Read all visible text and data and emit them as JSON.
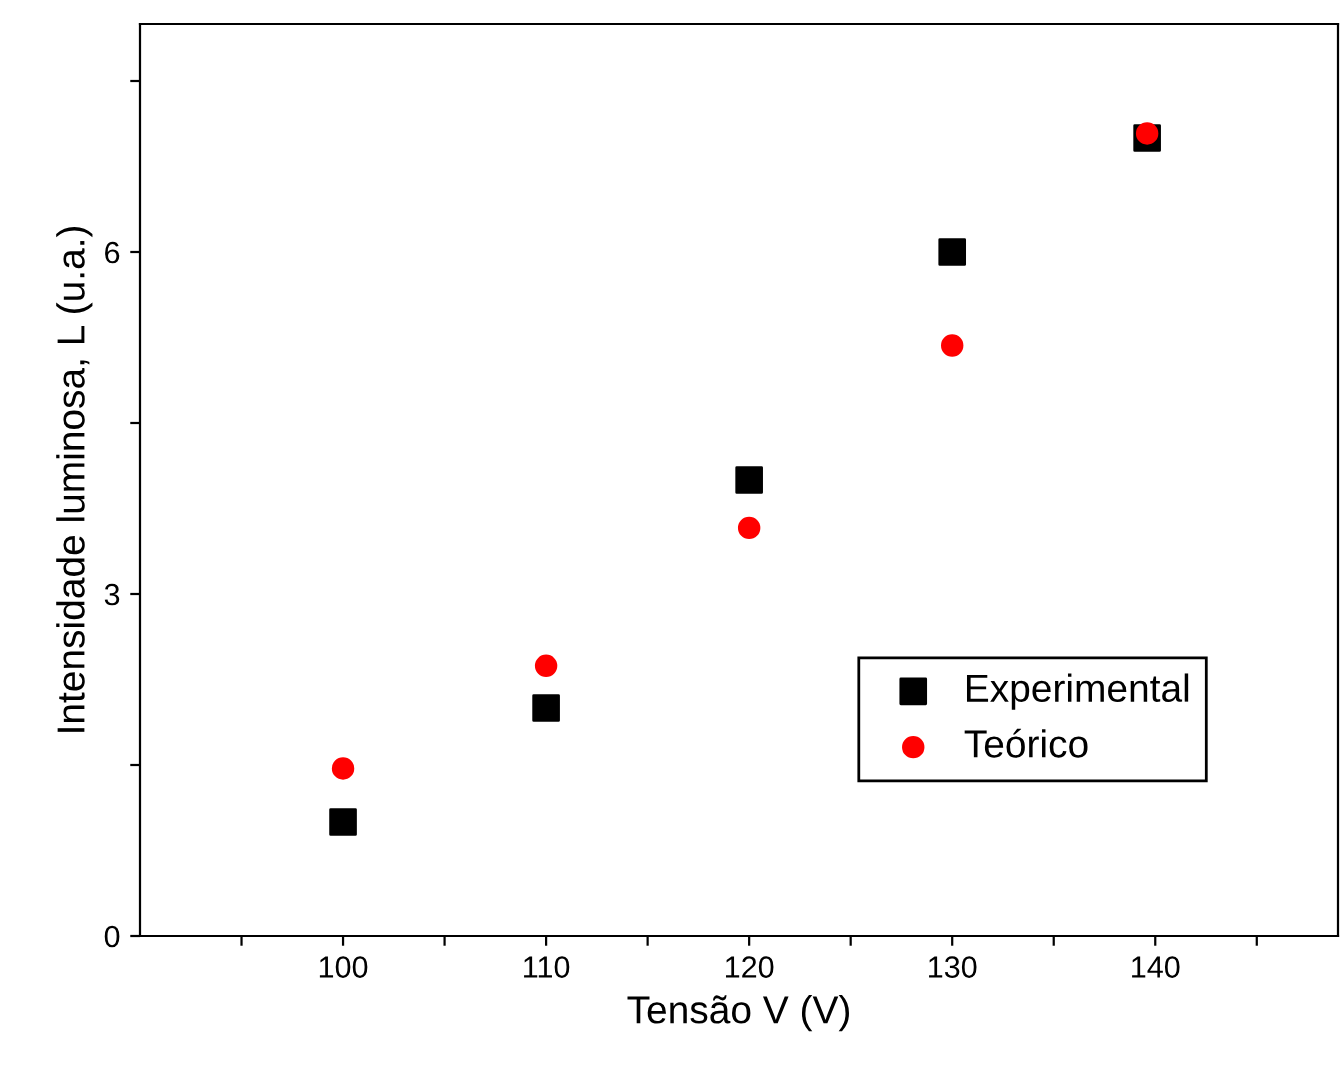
{
  "chart_data": {
    "type": "scatter",
    "xlabel": "Tensão V (V)",
    "ylabel": "Intensidade luminosa, L (u.a.)",
    "xlim": [
      90,
      149
    ],
    "ylim": [
      0,
      8
    ],
    "xticks": [
      {
        "value": 95,
        "label": null
      },
      100,
      {
        "value": 105,
        "label": null
      },
      110,
      {
        "value": 115,
        "label": null
      },
      120,
      {
        "value": 125,
        "label": null
      },
      130,
      {
        "value": 135,
        "label": null
      },
      140,
      {
        "value": 145,
        "label": null
      }
    ],
    "yticks": [
      0,
      {
        "value": 1.5,
        "label": null
      },
      3,
      {
        "value": 4.5,
        "label": null
      },
      6,
      {
        "value": 7.5,
        "label": null
      }
    ],
    "grid": false,
    "legend": "bottom right",
    "series": [
      {
        "name": "Experimental",
        "color": "#000000",
        "marker": "square",
        "x": [
          100,
          110,
          120,
          130,
          139.6
        ],
        "values": [
          1.0,
          2.0,
          4.0,
          6.0,
          7.0
        ]
      },
      {
        "name": "Teórico",
        "color": "#ff0000",
        "marker": "circle",
        "x": [
          100,
          110,
          120,
          130,
          139.6
        ],
        "values": [
          1.47,
          2.37,
          3.58,
          5.18,
          7.04
        ]
      }
    ]
  }
}
